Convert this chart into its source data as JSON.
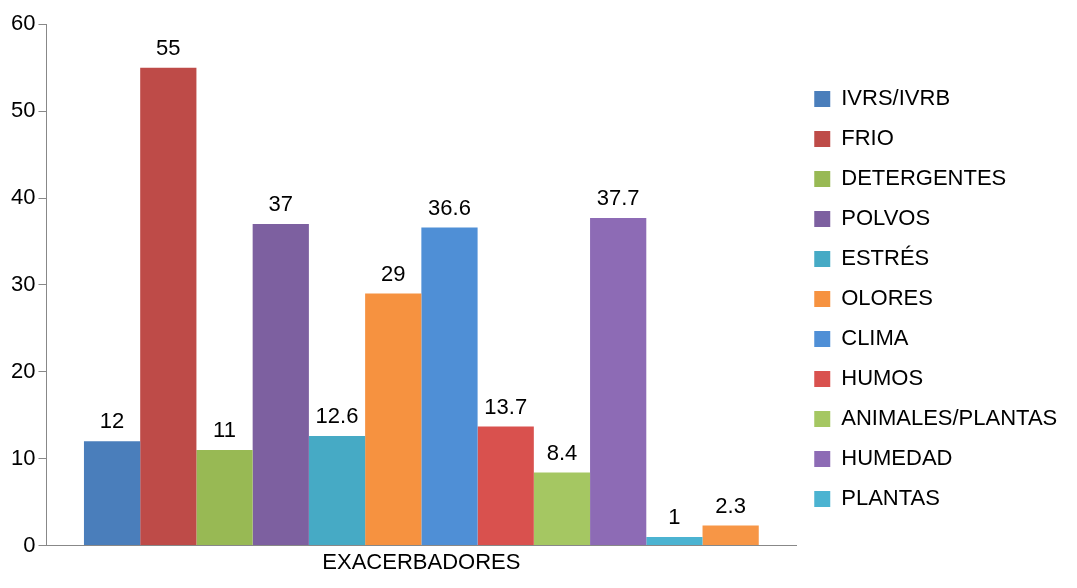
{
  "chart_data": {
    "type": "bar",
    "categories": [
      null
    ],
    "xlabel": "EXACERBADORES",
    "ylim": [
      0,
      60
    ],
    "yticks": [
      0,
      10,
      20,
      30,
      40,
      50,
      60
    ],
    "grid": false,
    "legend": "right",
    "data_labels": true,
    "series": [
      {
        "name": "IVRS/IVRB",
        "color": "#4a7ebb",
        "values": [
          12
        ]
      },
      {
        "name": "FRIO",
        "color": "#be4b48",
        "values": [
          55
        ]
      },
      {
        "name": "DETERGENTES",
        "color": "#98b954",
        "values": [
          11
        ]
      },
      {
        "name": "POLVOS",
        "color": "#7d60a0",
        "values": [
          37
        ]
      },
      {
        "name": "ESTRÉS",
        "color": "#46aac5",
        "values": [
          12.6
        ]
      },
      {
        "name": "OLORES",
        "color": "#f69240",
        "values": [
          29
        ]
      },
      {
        "name": "CLIMA",
        "color": "#4f8fd6",
        "values": [
          36.6
        ]
      },
      {
        "name": "HUMOS",
        "color": "#d9514e",
        "values": [
          13.7
        ]
      },
      {
        "name": "ANIMALES/PLANTAS",
        "color": "#a5c762",
        "values": [
          8.4
        ]
      },
      {
        "name": "HUMEDAD",
        "color": "#8d6bb5",
        "values": [
          37.7
        ]
      },
      {
        "name": "PLANTAS",
        "color": "#4bb3d1",
        "values": [
          1
        ]
      },
      {
        "color": "#f79646",
        "values": [
          2.3
        ]
      }
    ]
  }
}
